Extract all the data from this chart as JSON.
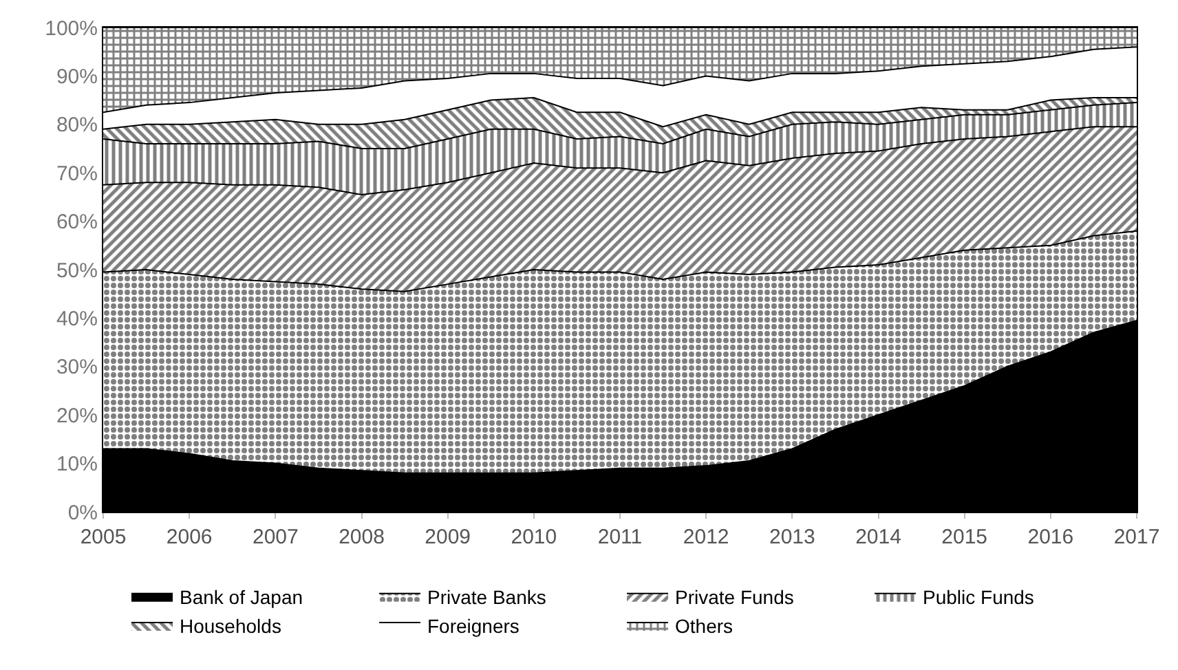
{
  "chart_data": {
    "type": "area",
    "stacked": true,
    "legend": "bottom",
    "x": [
      2005,
      2005.5,
      2006,
      2006.5,
      2007,
      2007.5,
      2008,
      2008.5,
      2009,
      2009.5,
      2010,
      2010.5,
      2011,
      2011.5,
      2012,
      2012.5,
      2013,
      2013.5,
      2014,
      2014.5,
      2015,
      2015.5,
      2016,
      2016.5,
      2017
    ],
    "xlim": [
      2005,
      2017
    ],
    "xticks": [
      2005,
      2006,
      2007,
      2008,
      2009,
      2010,
      2011,
      2012,
      2013,
      2014,
      2015,
      2016,
      2017
    ],
    "ylim": [
      0,
      100
    ],
    "yticks": [
      {
        "value": 0,
        "label": "0%"
      },
      {
        "value": 10,
        "label": "10%"
      },
      {
        "value": 20,
        "label": "20%"
      },
      {
        "value": 30,
        "label": "30%"
      },
      {
        "value": 40,
        "label": "40%"
      },
      {
        "value": 50,
        "label": "50%"
      },
      {
        "value": 60,
        "label": "60%"
      },
      {
        "value": 70,
        "label": "70%"
      },
      {
        "value": 80,
        "label": "80%"
      },
      {
        "value": 90,
        "label": "90%"
      },
      {
        "value": 100,
        "label": "100%"
      }
    ],
    "series": [
      {
        "name": "Bank of Japan",
        "color": "#000000",
        "values": [
          13,
          13,
          12,
          10.5,
          10,
          9,
          8.5,
          8,
          8,
          8,
          8,
          8.5,
          9,
          9,
          9.5,
          10.5,
          13,
          17,
          20,
          23,
          26,
          30,
          33,
          37,
          39.5
        ]
      },
      {
        "name": "Private Banks",
        "color": "#000000",
        "values": [
          36.5,
          37,
          37,
          37.5,
          37.5,
          38,
          37.5,
          37.5,
          39,
          40.5,
          42,
          41,
          40.5,
          39,
          40,
          38.5,
          36.5,
          33.5,
          31,
          29.5,
          28,
          24.5,
          22,
          20,
          18.5
        ]
      },
      {
        "name": "Private Funds",
        "color": "#000000",
        "values": [
          18,
          18,
          19,
          19.5,
          20,
          20,
          19.5,
          21,
          21,
          21.5,
          22,
          21.5,
          21.5,
          22,
          23,
          22.5,
          23.5,
          23.5,
          23.5,
          23.5,
          23,
          23,
          23.5,
          22.5,
          21.5
        ]
      },
      {
        "name": "Public Funds",
        "color": "#000000",
        "values": [
          9.5,
          8,
          8,
          8.5,
          8.5,
          9.5,
          9.5,
          8.5,
          9,
          9,
          7,
          6,
          6.5,
          6,
          6.5,
          6,
          7,
          6.5,
          5.5,
          5,
          5,
          4.5,
          4.5,
          4.5,
          5
        ]
      },
      {
        "name": "Households",
        "color": "#000000",
        "values": [
          2,
          4,
          4,
          4.5,
          5,
          3.5,
          5,
          6,
          6,
          6,
          6.5,
          5.5,
          5,
          3.5,
          3,
          2.5,
          2.5,
          2,
          2.5,
          2.5,
          1,
          1,
          2,
          1.5,
          1
        ]
      },
      {
        "name": "Foreigners",
        "color": "#ffffff",
        "values": [
          3.5,
          4,
          4.5,
          5,
          5.5,
          7,
          7.5,
          8,
          6.5,
          5.5,
          5,
          7,
          7,
          8.5,
          8,
          9,
          8,
          8,
          8.5,
          8.5,
          9.5,
          10,
          9,
          10,
          10.5
        ]
      },
      {
        "name": "Others",
        "color": "#000000",
        "values": [
          17.5,
          16,
          15.5,
          14.5,
          13.5,
          13,
          12.5,
          11,
          10.5,
          9.5,
          9.5,
          10.5,
          10.5,
          12,
          10,
          11,
          9.5,
          9.5,
          9,
          8,
          7.5,
          7,
          6,
          4.5,
          4
        ]
      }
    ]
  }
}
